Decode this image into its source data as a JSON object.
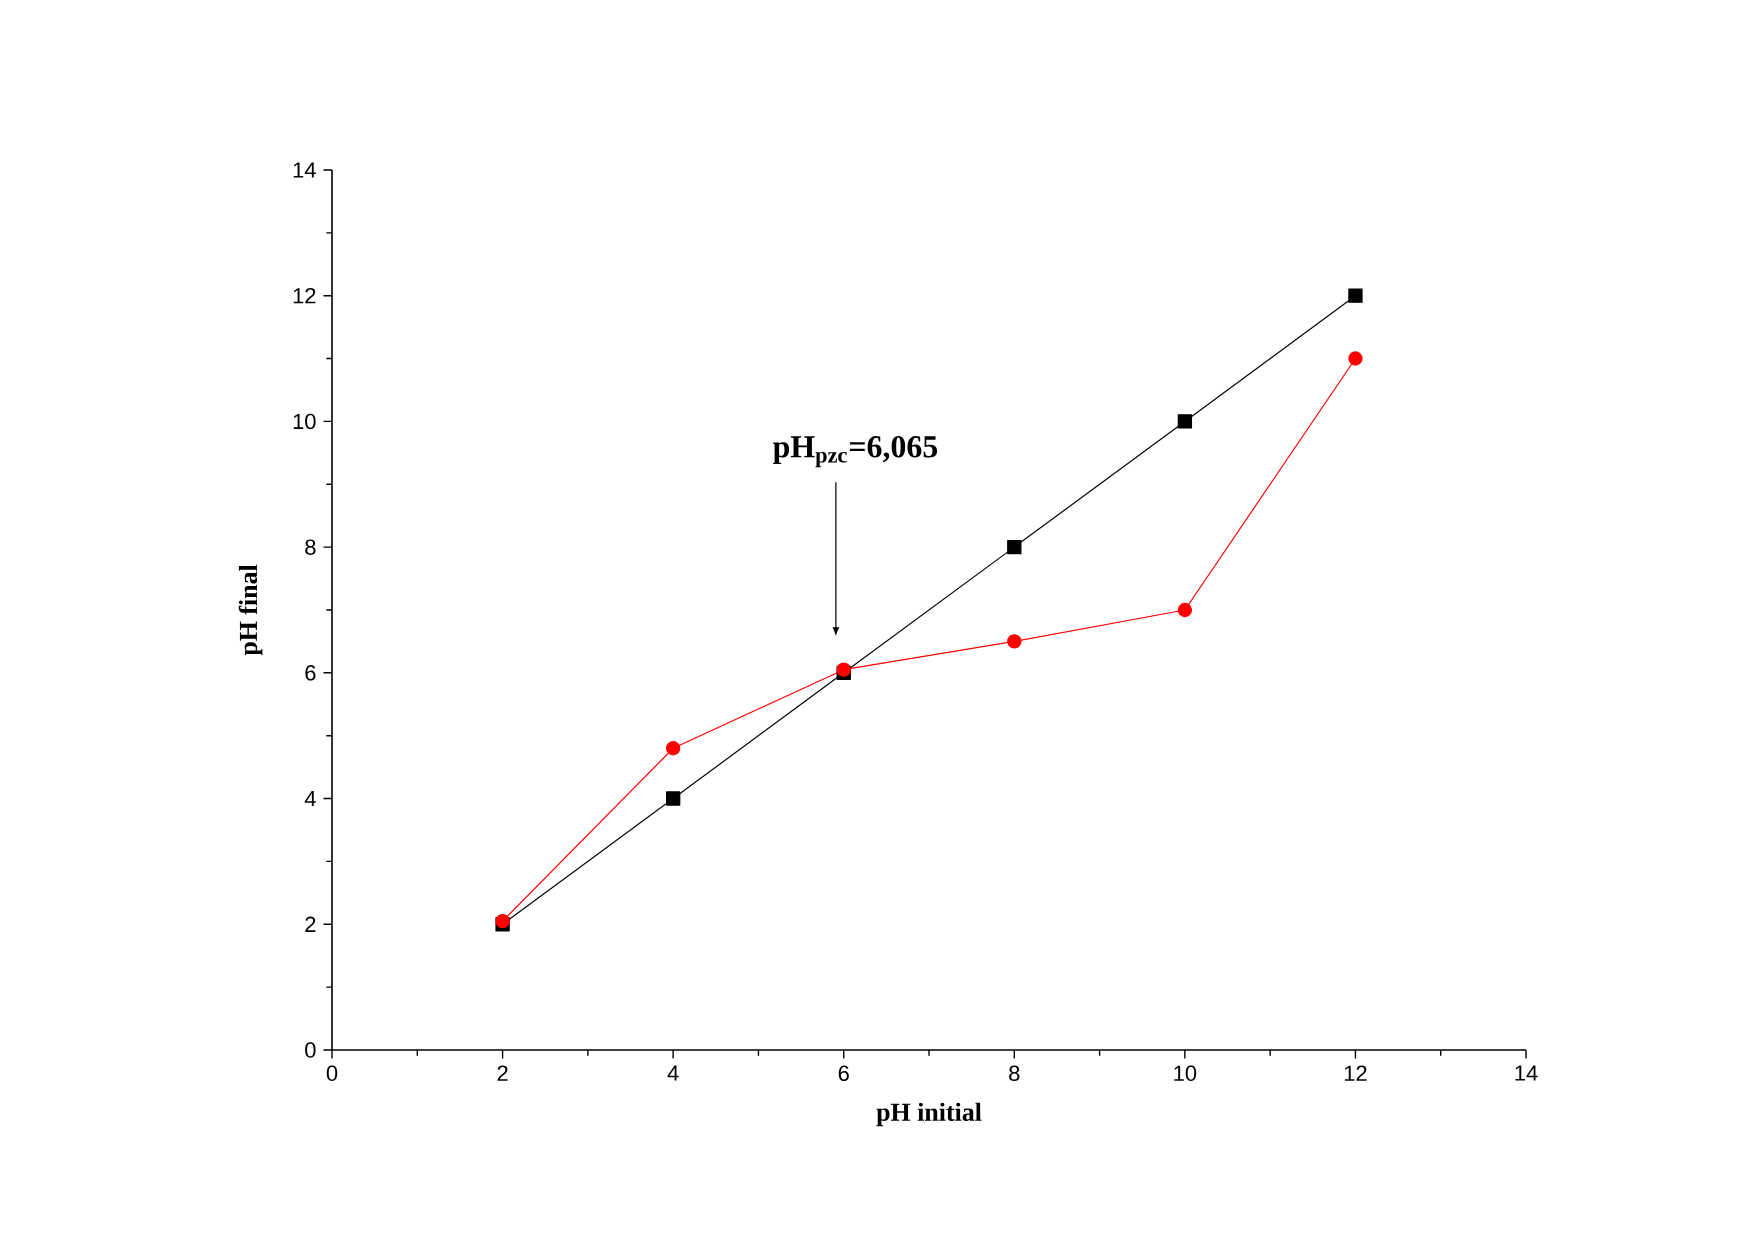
{
  "chart_data": {
    "type": "line",
    "xlabel": "pH initial",
    "ylabel": "pH final",
    "x": [
      2,
      4,
      6,
      8,
      10,
      12
    ],
    "series": [
      {
        "color": "#000000",
        "marker": "square",
        "values": [
          2,
          4,
          6,
          8,
          10,
          12
        ]
      },
      {
        "color": "#ff0000",
        "marker": "circle",
        "values": [
          2.05,
          4.8,
          6.05,
          6.5,
          7.0,
          11.0
        ]
      }
    ],
    "xlim": [
      0,
      14
    ],
    "ylim": [
      0,
      14
    ],
    "xticks": [
      0,
      2,
      4,
      6,
      8,
      10,
      12,
      14
    ],
    "yticks": [
      0,
      2,
      4,
      6,
      8,
      10,
      12,
      14
    ],
    "grid": false,
    "line_style": "solid",
    "annotations": [
      "pH$_{pzc}$=6,065"
    ]
  }
}
